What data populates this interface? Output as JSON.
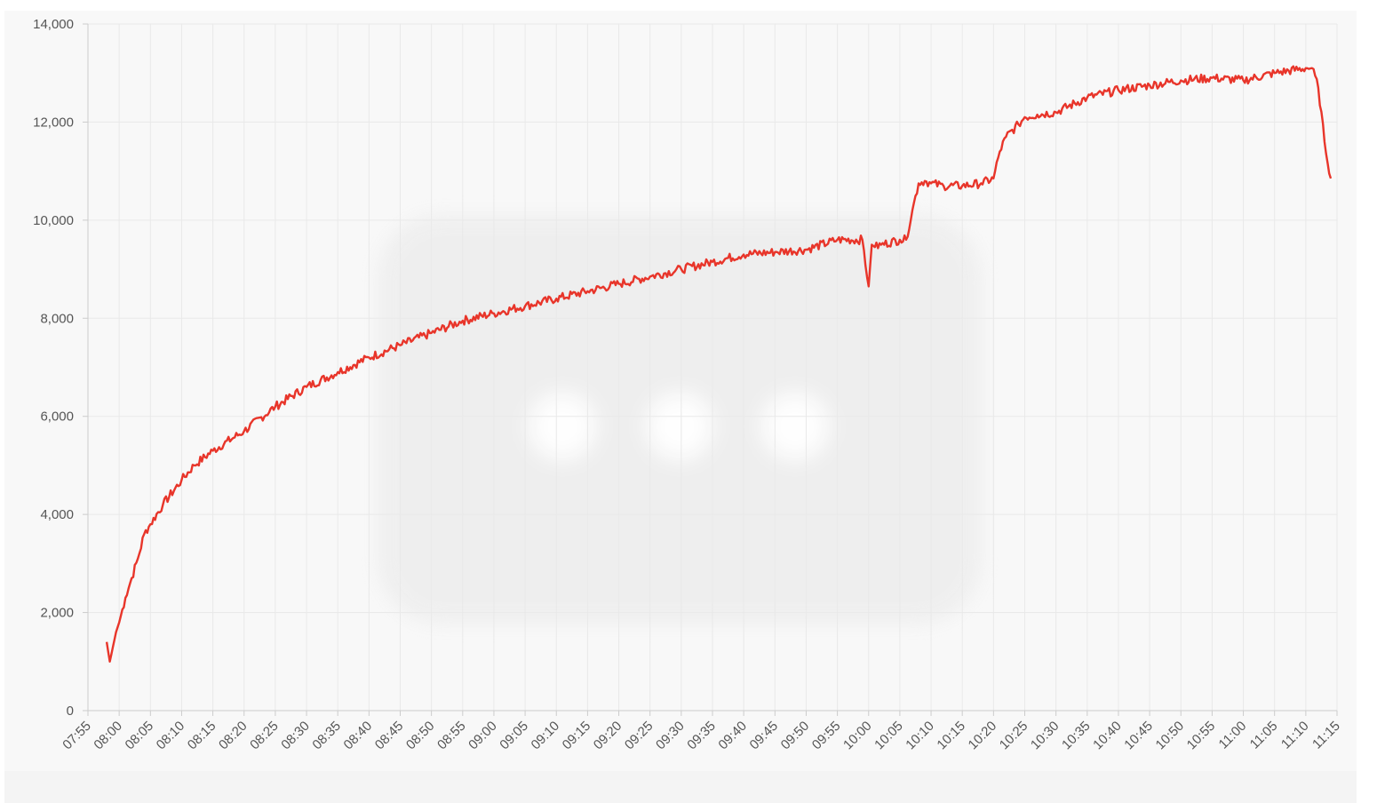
{
  "chart_data": {
    "type": "line",
    "title": "",
    "xlabel": "",
    "ylabel": "",
    "ylim": [
      0,
      14000
    ],
    "yticks": [
      "0",
      "2,000",
      "4,000",
      "6,000",
      "8,000",
      "10,000",
      "12,000",
      "14,000"
    ],
    "xticks": [
      "07:55",
      "08:00",
      "08:05",
      "08:10",
      "08:15",
      "08:20",
      "08:25",
      "08:30",
      "08:35",
      "08:40",
      "08:45",
      "08:50",
      "08:55",
      "09:00",
      "09:05",
      "09:10",
      "09:15",
      "09:20",
      "09:25",
      "09:30",
      "09:35",
      "09:40",
      "09:45",
      "09:50",
      "09:55",
      "10:00",
      "10:05",
      "10:10",
      "10:15",
      "10:20",
      "10:25",
      "10:30",
      "10:35",
      "10:40",
      "10:45",
      "10:50",
      "10:55",
      "11:00",
      "11:05",
      "11:10",
      "11:15"
    ],
    "xrange": [
      "07:55",
      "11:15"
    ],
    "grid": true,
    "line_color": "#e8352a",
    "series": [
      {
        "x": [
          "07:58",
          "07:58.5",
          "07:59",
          "07:59.5",
          "08:00",
          "08:01",
          "08:02",
          "08:03",
          "08:04",
          "08:05",
          "08:07",
          "08:10",
          "08:12",
          "08:15",
          "08:20",
          "08:25",
          "08:30",
          "08:35",
          "08:40",
          "08:45",
          "08:50",
          "08:55",
          "09:00",
          "09:05",
          "09:10",
          "09:15",
          "09:20",
          "09:25",
          "09:30",
          "09:35",
          "09:40",
          "09:45",
          "09:50",
          "09:55",
          "09:59",
          "10:00",
          "10:00.5",
          "10:01",
          "10:02",
          "10:05",
          "10:06",
          "10:07",
          "10:08",
          "10:09",
          "10:10",
          "10:12",
          "10:15",
          "10:18",
          "10:20",
          "10:21",
          "10:22",
          "10:24",
          "10:25",
          "10:27",
          "10:30",
          "10:35",
          "10:40",
          "10:45",
          "10:50",
          "10:55",
          "11:00",
          "11:05",
          "11:10",
          "11:11",
          "11:12",
          "11:13",
          "11:14"
        ],
        "y": [
          1400,
          1000,
          1300,
          1600,
          1800,
          2300,
          2700,
          3100,
          3600,
          3800,
          4200,
          4700,
          5000,
          5300,
          5700,
          6200,
          6600,
          6900,
          7200,
          7450,
          7700,
          7950,
          8100,
          8250,
          8400,
          8550,
          8700,
          8850,
          9000,
          9150,
          9300,
          9350,
          9400,
          9600,
          9600,
          8650,
          9500,
          9450,
          9500,
          9600,
          9600,
          10200,
          10750,
          10800,
          10750,
          10700,
          10700,
          10750,
          10850,
          11400,
          11700,
          11950,
          12100,
          12150,
          12200,
          12500,
          12650,
          12750,
          12850,
          12900,
          12850,
          13000,
          13100,
          13100,
          12700,
          11600,
          10850
        ]
      }
    ]
  }
}
